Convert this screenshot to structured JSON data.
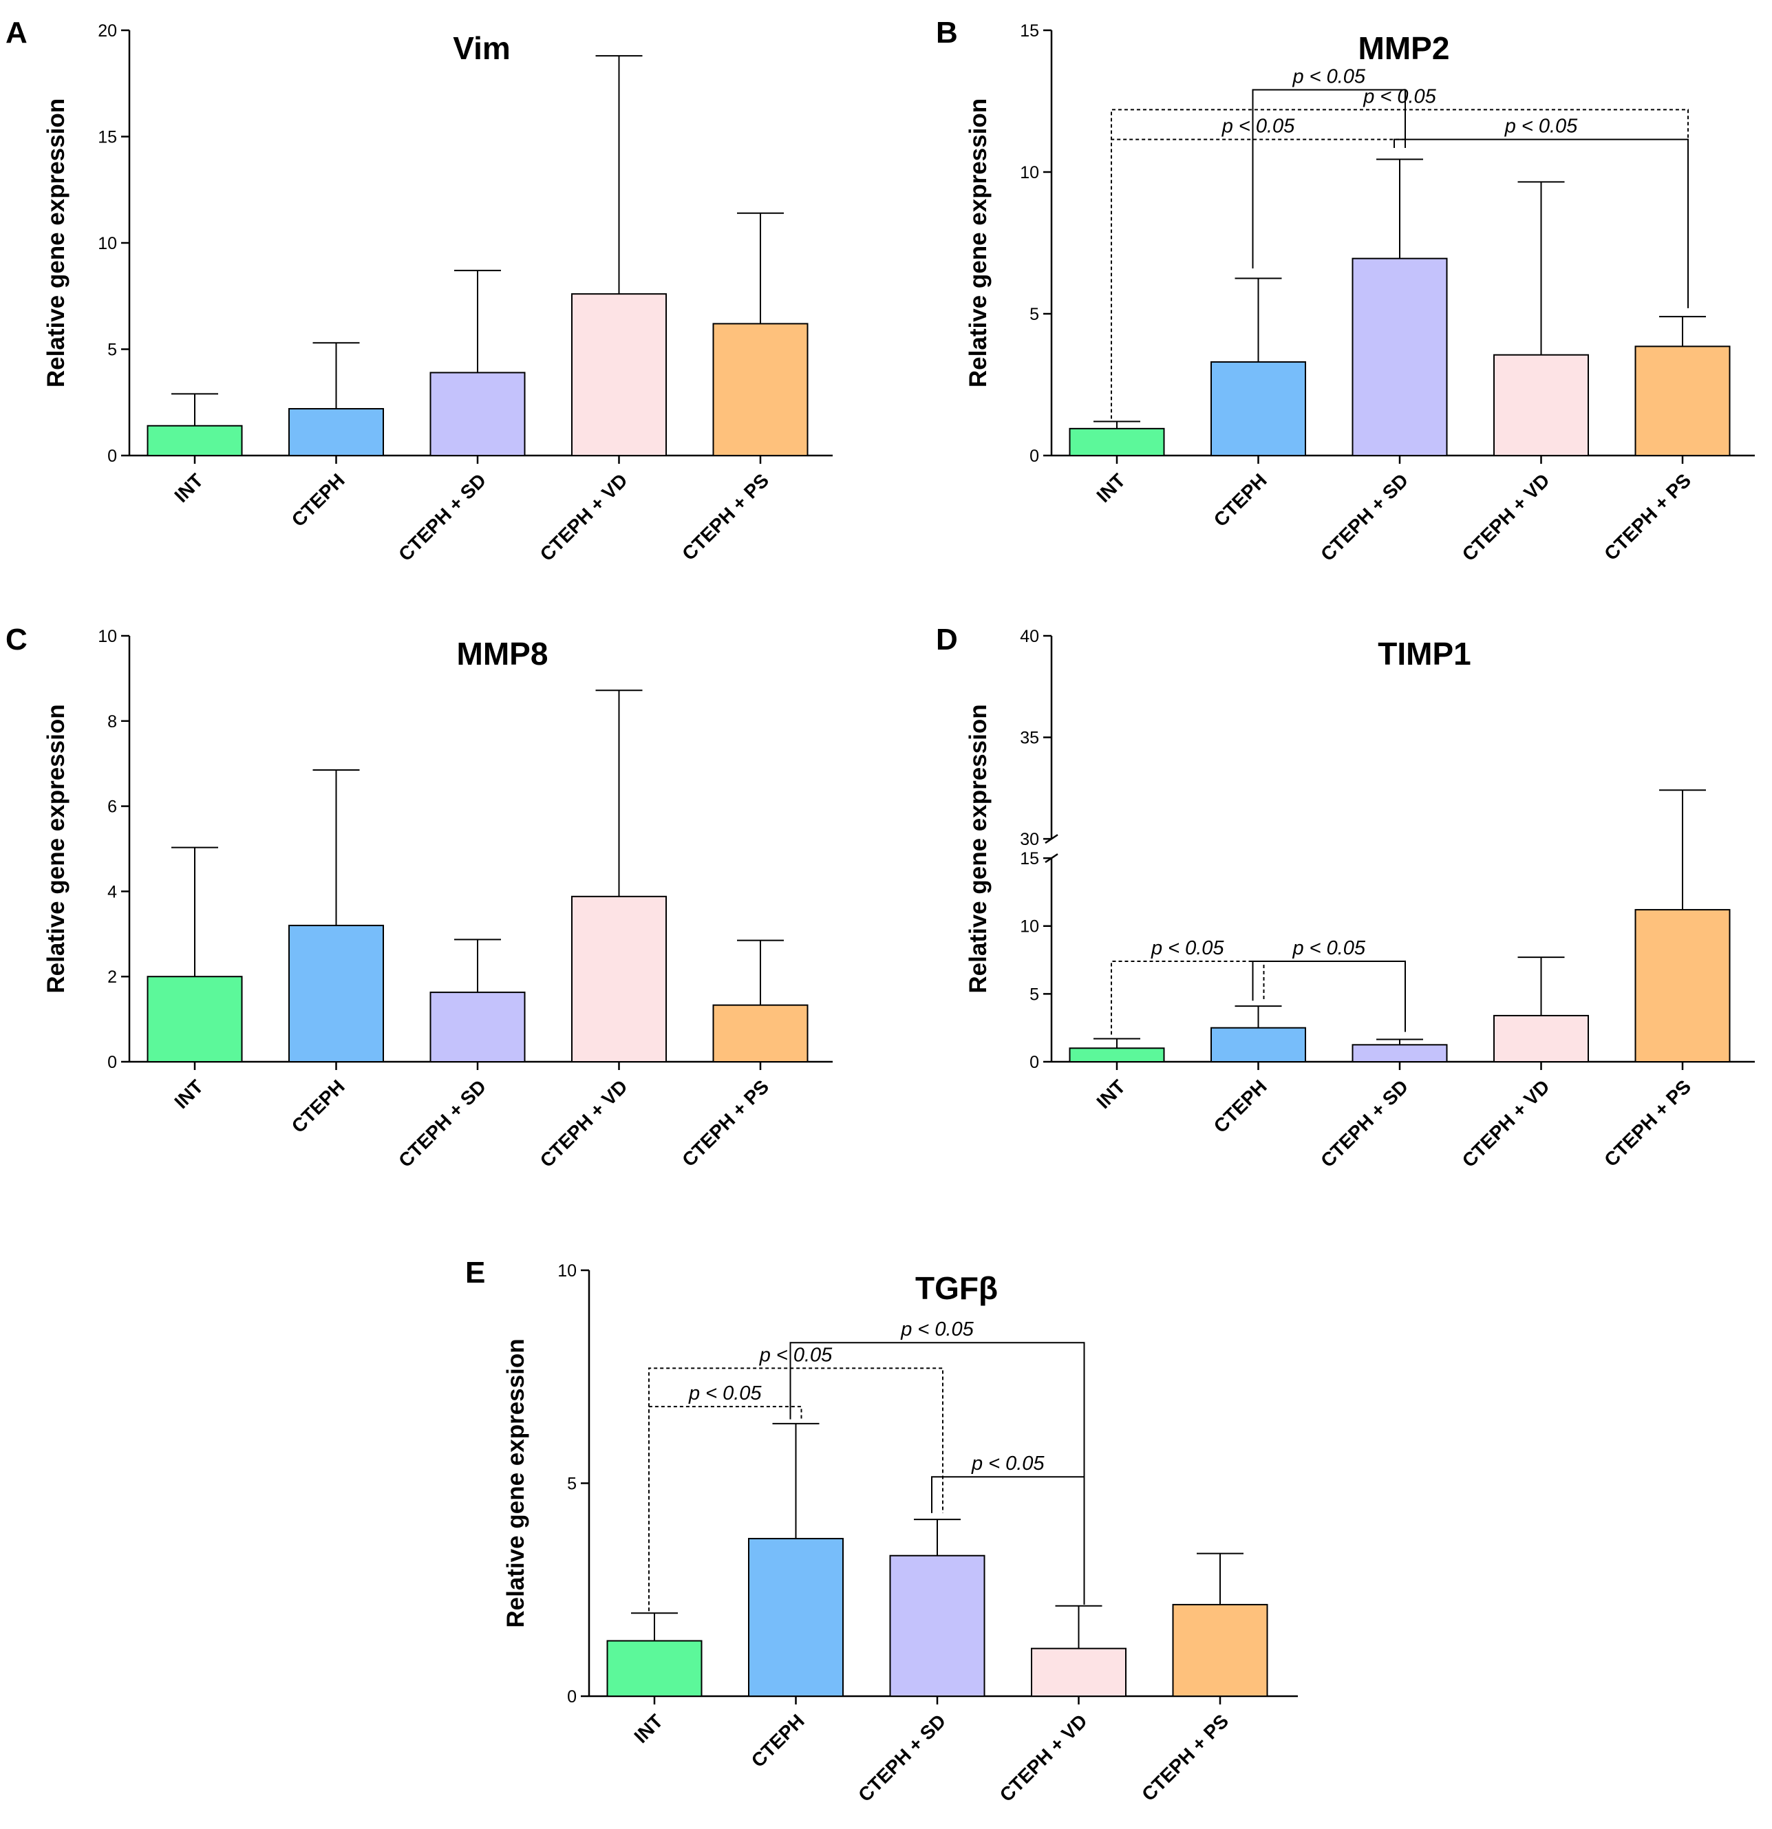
{
  "figure": {
    "panel_letters": [
      "A",
      "B",
      "C",
      "D",
      "E"
    ]
  },
  "colors": {
    "INT": "#5cf89a",
    "CTEPH": "#77bdfa",
    "CTEPH + SD": "#c4c2fc",
    "CTEPH + VD": "#fde3e5",
    "CTEPH + PS": "#fec17c"
  },
  "chart_data": [
    {
      "id": "A",
      "type": "bar",
      "title": "Vim",
      "xlabel": "",
      "ylabel": "Relative gene expression",
      "ylim": [
        0,
        20
      ],
      "yticks": [
        0,
        5,
        10,
        15,
        20
      ],
      "categories": [
        "INT",
        "CTEPH",
        "CTEPH + SD",
        "CTEPH + VD",
        "CTEPH + PS"
      ],
      "values": [
        1.4,
        2.2,
        3.9,
        7.6,
        6.2
      ],
      "error_upper": [
        2.9,
        5.3,
        8.7,
        18.8,
        11.4
      ],
      "significance": []
    },
    {
      "id": "B",
      "type": "bar",
      "title": "MMP2",
      "xlabel": "",
      "ylabel": "Relative gene expression",
      "ylim": [
        0,
        15
      ],
      "yticks": [
        0,
        5,
        10,
        15
      ],
      "categories": [
        "INT",
        "CTEPH",
        "CTEPH + SD",
        "CTEPH + VD",
        "CTEPH + PS"
      ],
      "values": [
        0.95,
        3.3,
        6.95,
        3.55,
        3.85
      ],
      "error_upper": [
        1.2,
        6.25,
        10.45,
        9.65,
        4.9
      ],
      "significance": [
        {
          "from": 1,
          "to": 2,
          "label": "p < 0.05",
          "style": "solid",
          "level": 12.9,
          "from_end": 6.6,
          "to_end": 10.85
        },
        {
          "from": 0,
          "to": 4,
          "label": "p < 0.05",
          "style": "dashed",
          "level": 12.2,
          "from_end": 1.3,
          "to_end": 5.2
        },
        {
          "from": 0,
          "to": 2,
          "label": "p < 0.05",
          "style": "dashed",
          "level": 11.15,
          "from_end": 1.3,
          "to_end": 10.85
        },
        {
          "from": 2,
          "to": 4,
          "label": "p < 0.05",
          "style": "solid",
          "level": 11.15,
          "from_end": 10.85,
          "to_end": 5.2
        }
      ]
    },
    {
      "id": "C",
      "type": "bar",
      "title": "MMP8",
      "xlabel": "",
      "ylabel": "Relative gene expression",
      "ylim": [
        0,
        10
      ],
      "yticks": [
        0,
        2,
        4,
        6,
        8,
        10
      ],
      "categories": [
        "INT",
        "CTEPH",
        "CTEPH + SD",
        "CTEPH + VD",
        "CTEPH + PS"
      ],
      "values": [
        2.0,
        3.2,
        1.63,
        3.88,
        1.33
      ],
      "error_upper": [
        5.03,
        6.85,
        2.87,
        8.72,
        2.85
      ],
      "significance": []
    },
    {
      "id": "D",
      "type": "bar",
      "title": "TIMP1",
      "xlabel": "",
      "ylabel": "Relative gene expression",
      "ylim": [
        0,
        40
      ],
      "yticks": [
        0,
        5,
        10,
        15,
        30,
        35,
        40
      ],
      "axis_break": [
        15,
        30
      ],
      "categories": [
        "INT",
        "CTEPH",
        "CTEPH + SD",
        "CTEPH + VD",
        "CTEPH + PS"
      ],
      "values": [
        1.0,
        2.5,
        1.25,
        3.4,
        11.2
      ],
      "error_upper": [
        1.7,
        4.1,
        1.65,
        7.7,
        32.4
      ],
      "significance": [
        {
          "from": 0,
          "to": 1,
          "label": "p < 0.05",
          "style": "dashed",
          "level": 7.4,
          "from_end": 2.0,
          "to_end": 4.5
        },
        {
          "from": 1,
          "to": 2,
          "label": "p < 0.05",
          "style": "solid",
          "level": 7.4,
          "from_end": 4.5,
          "to_end": 2.2
        }
      ]
    },
    {
      "id": "E",
      "type": "bar",
      "title": "TGFβ",
      "xlabel": "",
      "ylabel": "Relative gene expression",
      "ylim": [
        0,
        10
      ],
      "yticks": [
        0,
        5,
        10
      ],
      "categories": [
        "INT",
        "CTEPH",
        "CTEPH + SD",
        "CTEPH + VD",
        "CTEPH + PS"
      ],
      "values": [
        1.3,
        3.7,
        3.3,
        1.12,
        2.15
      ],
      "error_upper": [
        1.95,
        6.4,
        4.15,
        2.12,
        3.35
      ],
      "significance": [
        {
          "from": 1,
          "to": 3,
          "label": "p < 0.05",
          "style": "solid",
          "level": 8.3,
          "from_end": 6.5,
          "to_end": 2.15
        },
        {
          "from": 0,
          "to": 2,
          "label": "p < 0.05",
          "style": "dashed",
          "level": 7.7,
          "from_end": 2.0,
          "to_end": 4.3
        },
        {
          "from": 0,
          "to": 1,
          "label": "p < 0.05",
          "style": "dashed",
          "level": 6.8,
          "from_end": 2.0,
          "to_end": 6.5
        },
        {
          "from": 2,
          "to": 3,
          "label": "p < 0.05",
          "style": "solid",
          "level": 5.15,
          "from_end": 4.3,
          "to_end": 2.15
        }
      ]
    }
  ]
}
